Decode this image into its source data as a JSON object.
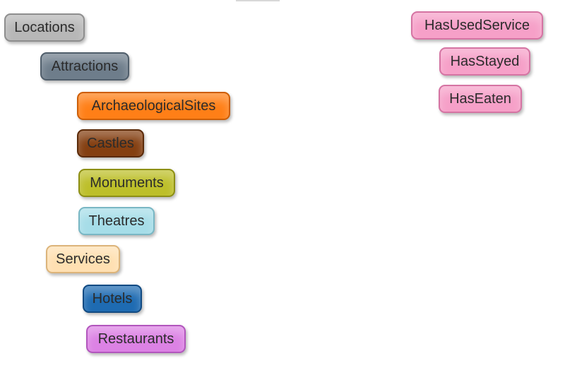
{
  "classes": {
    "locations": {
      "label": "Locations",
      "color": "#b7b7b7"
    },
    "attractions": {
      "label": "Attractions",
      "color": "#6e7d8b"
    },
    "archaeological_sites": {
      "label": "ArchaeologicalSites",
      "color": "#ff7f17"
    },
    "castles": {
      "label": "Castles",
      "color": "#843f11"
    },
    "monuments": {
      "label": "Monuments",
      "color": "#bdbf2a"
    },
    "theatres": {
      "label": "Theatres",
      "color": "#a6dde8"
    },
    "services": {
      "label": "Services",
      "color": "#ffe0b2"
    },
    "hotels": {
      "label": "Hotels",
      "color": "#1e6bb2"
    },
    "restaurants": {
      "label": "Restaurants",
      "color": "#dc82e4"
    }
  },
  "properties": {
    "has_used_service": {
      "label": "HasUsedService",
      "color": "#f6a0c8"
    },
    "has_stayed": {
      "label": "HasStayed",
      "color": "#f6a0c8"
    },
    "has_eaten": {
      "label": "HasEaten",
      "color": "#f6a0c8"
    }
  }
}
